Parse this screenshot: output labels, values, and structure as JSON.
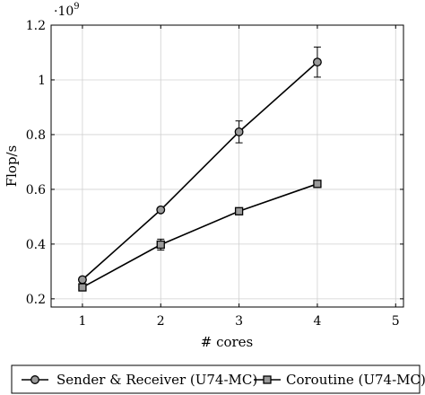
{
  "chart_data": {
    "type": "line",
    "xlabel": "# cores",
    "ylabel": "Flop/s",
    "y_scale_label": "·10",
    "y_scale_exponent": "9",
    "xlim": [
      0.6,
      5.1
    ],
    "ylim": [
      0.17,
      1.2
    ],
    "x_ticks": [
      1,
      2,
      3,
      4,
      5
    ],
    "y_ticks": [
      0.2,
      0.4,
      0.6,
      0.8,
      1,
      1.2
    ],
    "y_tick_labels": [
      "0.2",
      "0.4",
      "0.6",
      "0.8",
      "1",
      "1.2"
    ],
    "grid": true,
    "legend_position": "bottom",
    "series": [
      {
        "name": "Sender & Receiver (U74-MC)",
        "marker": "circle",
        "x": [
          1,
          2,
          3,
          4
        ],
        "y": [
          0.27,
          0.525,
          0.81,
          1.065
        ],
        "err": [
          0.005,
          0.005,
          0.04,
          0.055
        ]
      },
      {
        "name": "Coroutine (U74-MC)",
        "marker": "square",
        "x": [
          1,
          2,
          3,
          4
        ],
        "y": [
          0.242,
          0.398,
          0.52,
          0.62
        ],
        "err": [
          0.005,
          0.02,
          0.005,
          0.005
        ]
      }
    ]
  }
}
